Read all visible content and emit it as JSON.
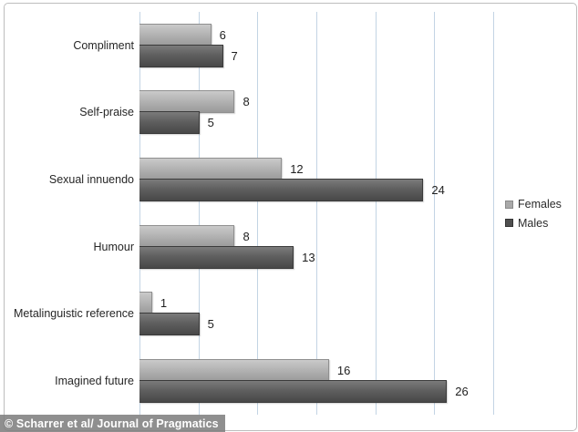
{
  "chart_data": {
    "type": "bar",
    "orientation": "horizontal",
    "title": "",
    "xlabel": "",
    "ylabel": "",
    "categories": [
      "Compliment",
      "Self-praise",
      "Sexual innuendo",
      "Humour",
      "Metalinguistic reference",
      "Imagined future"
    ],
    "series": [
      {
        "name": "Females",
        "values": [
          6,
          8,
          12,
          8,
          1,
          16
        ],
        "color": "#b0b0b0"
      },
      {
        "name": "Males",
        "values": [
          7,
          5,
          24,
          13,
          5,
          26
        ],
        "color": "#575757"
      }
    ],
    "xlim": [
      0,
      30
    ],
    "gridline_step": 5,
    "grid": "vertical-only",
    "tick_labels_visible": false,
    "legend_position": "right",
    "data_labels": "outside-end"
  },
  "legend": {
    "items": [
      {
        "label": "Females",
        "swatch": "light-gray"
      },
      {
        "label": "Males",
        "swatch": "dark-gray"
      }
    ]
  },
  "credit": {
    "text": "© Scharrer et al/ Journal of Pragmatics"
  },
  "colors": {
    "female_bar": "#b0b0b0",
    "male_bar": "#575757",
    "gridline": "#c3d4e4",
    "category_text": "#262626",
    "value_text": "#1f1f1f",
    "frame_border": "#bdbdbd",
    "credit_bg": "#808080",
    "credit_text": "#ffffff",
    "background": "#ffffff"
  }
}
